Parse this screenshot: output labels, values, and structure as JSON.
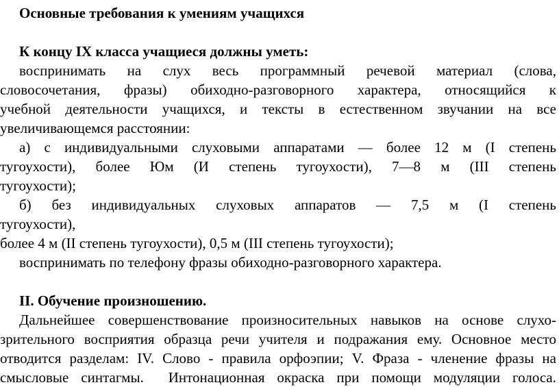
{
  "document": {
    "title": "Основные требования к умениям учащихся",
    "section_hearing": {
      "heading": "К концу IX класса учащиеся должны уметь:",
      "intro": {
        "lines": [
          "воспринимать на слух весь программный речевой материал (слова,",
          "словосочетания, фразы) обиходно-разговорного характера, относящийся к",
          "учебной деятельности учащихся, и тексты в естественном звучании на все",
          "увеличивающемся расстоянии:"
        ]
      },
      "item_a": {
        "lines": [
          "а) с индивидуальными слуховыми аппаратами — более 12 м (I степень",
          "тугоухости), более Юм (И степень тугоухости), 7—8 м (III степень",
          "тугоухости);"
        ]
      },
      "item_b": {
        "lines": [
          "б) без индивидуальных слуховых аппаратов — 7,5 м (I степень",
          "тугоухости),",
          "более 4 м (II степень тугоухости), 0,5 м (III степень тугоухости);",
          "воспринимать по телефону фразы обиходно-разговорного характера."
        ]
      }
    },
    "section_pronunciation": {
      "heading": "II. Обучение произношению.",
      "paragraph": {
        "lines": [
          "Дальнейшее совершенствование произносительных навыков на основе слухо-",
          "зрительного восприятия образца речи учителя и подражания ему. Основное место",
          "отводится разделам: IV. Слово - правила орфоэпии; V. Фраза - членение фразы на",
          "смысловые синтагмы.  Интонационная окраска при помощи модуляции голоса."
        ]
      }
    }
  }
}
